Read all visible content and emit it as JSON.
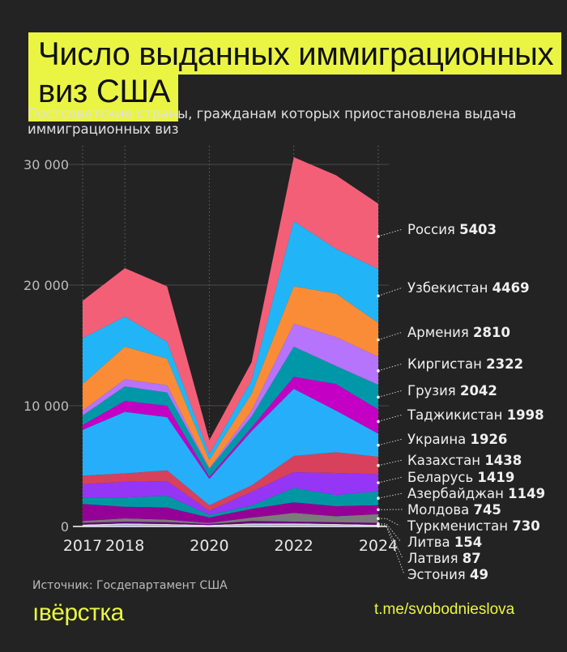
{
  "title_line1": "Число выданных иммиграционных",
  "title_line2": "виз США",
  "subtitle": "Постсоветские страны, гражданам которых приостановлена выдача иммиграционных виз",
  "source": "Источник: Госдепартамент США",
  "logo": "ıвёрстка",
  "link": "t.me/svobodnieslova",
  "colors": {
    "background": "#232323",
    "accent": "#eaf543"
  },
  "chart_data": {
    "type": "area",
    "stacked": true,
    "x": [
      2017,
      2018,
      2019,
      2020,
      2021,
      2022,
      2023,
      2024
    ],
    "x_tick_labels": [
      "2017",
      "2018",
      "2020",
      "2022",
      "2024"
    ],
    "x_ticks": [
      2017,
      2018,
      2020,
      2022,
      2024
    ],
    "y_ticks": [
      0,
      10000,
      20000,
      30000
    ],
    "y_tick_labels": [
      "0",
      "10 000",
      "20 000",
      "30 000"
    ],
    "ylim": [
      0,
      30500
    ],
    "grid": "horizontal",
    "legend": "right, direct labels with 2024 values",
    "series": [
      {
        "name": "Эстония",
        "label_value": "49",
        "color": "#3a5cf0",
        "values": [
          50,
          100,
          80,
          50,
          100,
          100,
          80,
          49
        ]
      },
      {
        "name": "Латвия",
        "label_value": "87",
        "color": "#dcdcdc",
        "values": [
          100,
          150,
          120,
          70,
          150,
          150,
          120,
          87
        ]
      },
      {
        "name": "Литва",
        "label_value": "154",
        "color": "#6a0080",
        "values": [
          150,
          150,
          150,
          80,
          200,
          150,
          150,
          154
        ]
      },
      {
        "name": "Туркменистан",
        "label_value": "730",
        "color": "#7b7b7b",
        "values": [
          150,
          270,
          210,
          90,
          290,
          720,
          500,
          730
        ]
      },
      {
        "name": "Молдова",
        "label_value": "745",
        "color": "#950096",
        "values": [
          1410,
          960,
          1010,
          450,
          710,
          880,
          830,
          745
        ]
      },
      {
        "name": "Азербайджан",
        "label_value": "1149",
        "color": "#0097a3",
        "values": [
          540,
          770,
          960,
          220,
          290,
          1200,
          920,
          1149
        ]
      },
      {
        "name": "Беларусь",
        "label_value": "1419",
        "color": "#9536f7",
        "values": [
          1100,
          1300,
          1230,
          340,
          1120,
          1300,
          1830,
          1419
        ]
      },
      {
        "name": "Казахстан",
        "label_value": "1438",
        "color": "#d7415c",
        "values": [
          700,
          700,
          890,
          450,
          540,
          1340,
          1720,
          1438
        ]
      },
      {
        "name": "Украина",
        "label_value": "1926",
        "color": "#26aefb",
        "values": [
          3800,
          5100,
          4410,
          2190,
          4500,
          5560,
          3450,
          1926
        ]
      },
      {
        "name": "Таджикистан",
        "label_value": "1998",
        "color": "#c300c3",
        "values": [
          400,
          900,
          940,
          160,
          300,
          1000,
          2200,
          1998
        ]
      },
      {
        "name": "Грузия",
        "label_value": "2042",
        "color": "#0098a8",
        "values": [
          800,
          1200,
          1100,
          670,
          900,
          2500,
          1500,
          2042
        ]
      },
      {
        "name": "Киргистан",
        "label_value": "2322",
        "color": "#b673fb",
        "values": [
          400,
          600,
          600,
          60,
          500,
          1900,
          2400,
          2322
        ]
      },
      {
        "name": "Армения",
        "label_value": "2810",
        "color": "#fb8c37",
        "values": [
          2200,
          2700,
          2200,
          670,
          1400,
          3100,
          3600,
          2810
        ]
      },
      {
        "name": "Узбекистан",
        "label_value": "4469",
        "color": "#21b5f7",
        "values": [
          3800,
          2500,
          1400,
          500,
          1100,
          5400,
          3700,
          4469
        ]
      },
      {
        "name": "Россия",
        "label_value": "5403",
        "color": "#f45f78",
        "values": [
          3100,
          4000,
          4600,
          1160,
          1500,
          5300,
          6100,
          5403
        ]
      }
    ]
  }
}
